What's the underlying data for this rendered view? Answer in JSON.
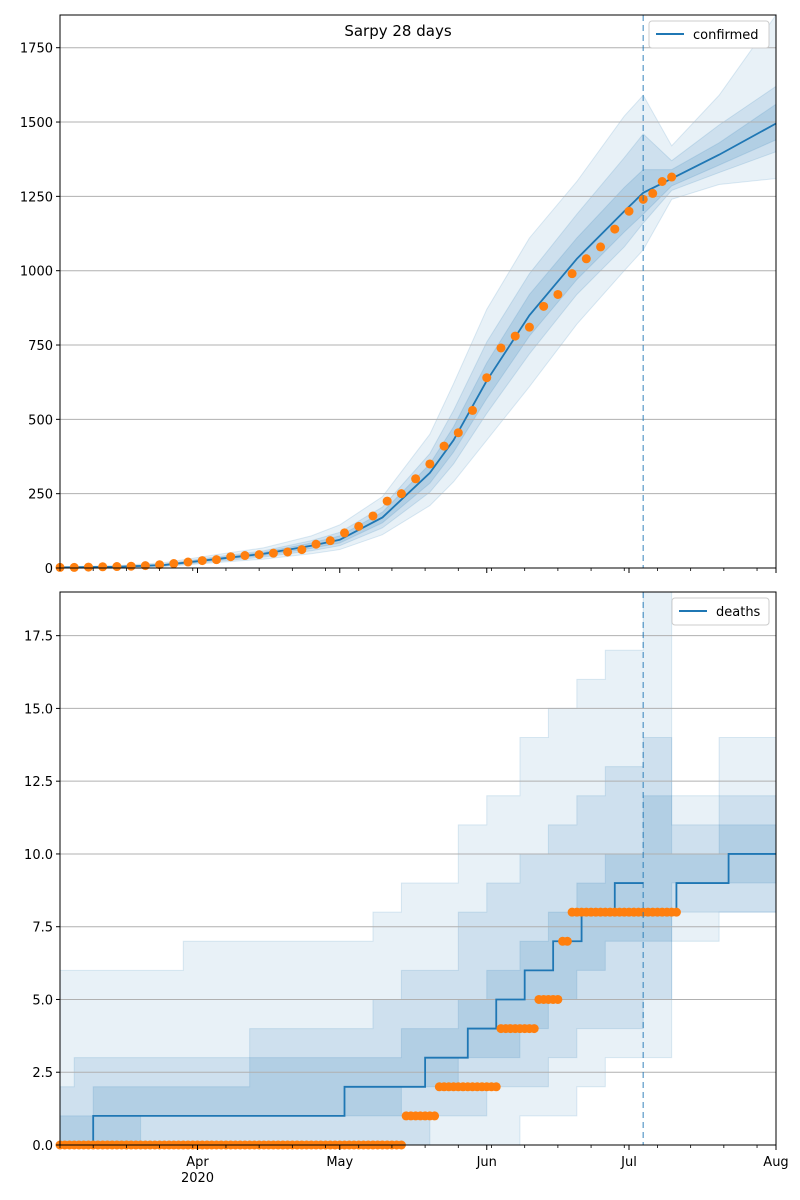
{
  "title": "Sarpy 28 days",
  "colors": {
    "model_line": "#1f77b4",
    "observed": "#ff7f0e",
    "band": "#1f77b4",
    "grid": "#b0b0b0",
    "vline": "#1f77b4"
  },
  "x_axis": {
    "domain_start": "2020-03-03",
    "domain_end": "2020-08-01",
    "forecast_start": "2020-07-04",
    "major_ticks": [
      {
        "date": "2020-04-01",
        "label": "Apr"
      },
      {
        "date": "2020-05-01",
        "label": "May"
      },
      {
        "date": "2020-06-01",
        "label": "Jun"
      },
      {
        "date": "2020-07-01",
        "label": "Jul"
      },
      {
        "date": "2020-08-01",
        "label": "Aug"
      }
    ],
    "year_label": "2020",
    "year_label_date": "2020-04-01"
  },
  "chart_data": [
    {
      "type": "line",
      "legend": "confirmed",
      "legend_position": "upper right",
      "grid": "horizontal",
      "ylim": [
        0,
        1860
      ],
      "yticks": [
        {
          "v": 0,
          "label": "0"
        },
        {
          "v": 250,
          "label": "250"
        },
        {
          "v": 500,
          "label": "500"
        },
        {
          "v": 750,
          "label": "750"
        },
        {
          "v": 1000,
          "label": "1000"
        },
        {
          "v": 1250,
          "label": "1250"
        },
        {
          "v": 1500,
          "label": "1500"
        },
        {
          "v": 1750,
          "label": "1750"
        }
      ],
      "model": {
        "x": [
          "2020-03-03",
          "2020-03-15",
          "2020-03-25",
          "2020-04-05",
          "2020-04-15",
          "2020-04-25",
          "2020-05-01",
          "2020-05-10",
          "2020-05-20",
          "2020-05-25",
          "2020-06-01",
          "2020-06-10",
          "2020-06-20",
          "2020-06-30",
          "2020-07-04",
          "2020-07-10",
          "2020-07-20",
          "2020-08-01"
        ],
        "y": [
          2,
          4,
          10,
          30,
          48,
          75,
          95,
          170,
          320,
          430,
          630,
          850,
          1040,
          1200,
          1262,
          1310,
          1390,
          1495
        ]
      },
      "bands": {
        "x": [
          "2020-03-03",
          "2020-03-15",
          "2020-03-25",
          "2020-04-05",
          "2020-04-15",
          "2020-04-25",
          "2020-05-01",
          "2020-05-10",
          "2020-05-20",
          "2020-05-25",
          "2020-06-01",
          "2020-06-10",
          "2020-06-20",
          "2020-06-30",
          "2020-07-04",
          "2020-07-10",
          "2020-07-20",
          "2020-08-01"
        ],
        "outer_hi": [
          4,
          8,
          18,
          45,
          68,
          108,
          145,
          240,
          450,
          620,
          870,
          1110,
          1300,
          1520,
          1590,
          1420,
          1590,
          1860
        ],
        "outer_lo": [
          1,
          2,
          5,
          18,
          30,
          48,
          62,
          112,
          210,
          290,
          430,
          610,
          820,
          1000,
          1070,
          1240,
          1290,
          1310
        ],
        "mid_hi": [
          3,
          6,
          14,
          38,
          58,
          92,
          120,
          205,
          385,
          530,
          760,
          990,
          1190,
          1380,
          1460,
          1370,
          1490,
          1620
        ],
        "mid_lo": [
          1,
          3,
          7,
          22,
          37,
          58,
          75,
          135,
          255,
          350,
          520,
          720,
          920,
          1080,
          1160,
          1270,
          1330,
          1400
        ],
        "inner_hi": [
          2,
          5,
          12,
          34,
          53,
          84,
          108,
          188,
          350,
          475,
          690,
          920,
          1110,
          1280,
          1340,
          1340,
          1430,
          1560
        ],
        "inner_lo": [
          1,
          3,
          8,
          26,
          42,
          66,
          84,
          152,
          285,
          390,
          570,
          780,
          970,
          1130,
          1190,
          1285,
          1355,
          1440
        ]
      },
      "observed": {
        "x": [
          "2020-03-03",
          "2020-03-06",
          "2020-03-09",
          "2020-03-12",
          "2020-03-15",
          "2020-03-18",
          "2020-03-21",
          "2020-03-24",
          "2020-03-27",
          "2020-03-30",
          "2020-04-02",
          "2020-04-05",
          "2020-04-08",
          "2020-04-11",
          "2020-04-14",
          "2020-04-17",
          "2020-04-20",
          "2020-04-23",
          "2020-04-26",
          "2020-04-29",
          "2020-05-02",
          "2020-05-05",
          "2020-05-08",
          "2020-05-11",
          "2020-05-14",
          "2020-05-17",
          "2020-05-20",
          "2020-05-23",
          "2020-05-26",
          "2020-05-29",
          "2020-06-01",
          "2020-06-04",
          "2020-06-07",
          "2020-06-10",
          "2020-06-13",
          "2020-06-16",
          "2020-06-19",
          "2020-06-22",
          "2020-06-25",
          "2020-06-28",
          "2020-07-01",
          "2020-07-04",
          "2020-07-06",
          "2020-07-08",
          "2020-07-10"
        ],
        "y": [
          2,
          2,
          3,
          4,
          5,
          6,
          8,
          11,
          15,
          20,
          25,
          28,
          38,
          42,
          45,
          50,
          54,
          62,
          80,
          92,
          118,
          140,
          175,
          225,
          250,
          300,
          350,
          410,
          455,
          530,
          640,
          740,
          780,
          810,
          880,
          920,
          990,
          1040,
          1080,
          1140,
          1200,
          1240,
          1260,
          1300,
          1315
        ]
      }
    },
    {
      "type": "line",
      "legend": "deaths",
      "legend_position": "upper right",
      "grid": "horizontal",
      "ylim": [
        0,
        19
      ],
      "yticks": [
        {
          "v": 0,
          "label": "0.0"
        },
        {
          "v": 2.5,
          "label": "2.5"
        },
        {
          "v": 5,
          "label": "5.0"
        },
        {
          "v": 7.5,
          "label": "7.5"
        },
        {
          "v": 10,
          "label": "10.0"
        },
        {
          "v": 12.5,
          "label": "12.5"
        },
        {
          "v": 15,
          "label": "15.0"
        },
        {
          "v": 17.5,
          "label": "17.5"
        }
      ],
      "model_steps": [
        {
          "x": "2020-03-03",
          "y": 0
        },
        {
          "x": "2020-03-10",
          "y": 1
        },
        {
          "x": "2020-05-02",
          "y": 2
        },
        {
          "x": "2020-05-19",
          "y": 3
        },
        {
          "x": "2020-05-28",
          "y": 4
        },
        {
          "x": "2020-06-03",
          "y": 5
        },
        {
          "x": "2020-06-09",
          "y": 6
        },
        {
          "x": "2020-06-15",
          "y": 7
        },
        {
          "x": "2020-06-21",
          "y": 8
        },
        {
          "x": "2020-06-28",
          "y": 9
        },
        {
          "x": "2020-07-04",
          "y": 9
        }
      ],
      "forecast_steps": [
        {
          "x": "2020-07-04",
          "y": 8
        },
        {
          "x": "2020-07-11",
          "y": 9
        },
        {
          "x": "2020-07-22",
          "y": 10
        },
        {
          "x": "2020-08-01",
          "y": 10
        }
      ],
      "bands_steps": {
        "x": [
          "2020-03-03",
          "2020-03-06",
          "2020-03-10",
          "2020-03-20",
          "2020-03-29",
          "2020-04-12",
          "2020-04-26",
          "2020-05-08",
          "2020-05-14",
          "2020-05-20",
          "2020-05-26",
          "2020-06-01",
          "2020-06-08",
          "2020-06-14",
          "2020-06-20",
          "2020-06-26",
          "2020-07-04",
          "2020-07-10",
          "2020-07-20",
          "2020-08-01"
        ],
        "outer_hi": [
          6,
          6,
          6,
          6,
          7,
          7,
          7,
          8,
          9,
          9,
          11,
          12,
          14,
          15,
          16,
          17,
          19,
          12,
          14,
          15
        ],
        "outer_lo": [
          0,
          0,
          0,
          0,
          0,
          0,
          0,
          0,
          0,
          0,
          0,
          0,
          1,
          1,
          2,
          3,
          3,
          7,
          8,
          8
        ],
        "mid_hi": [
          2,
          3,
          3,
          3,
          3,
          4,
          4,
          5,
          6,
          6,
          8,
          9,
          10,
          11,
          12,
          13,
          14,
          11,
          12,
          13
        ],
        "mid_lo": [
          0,
          0,
          0,
          0,
          0,
          0,
          0,
          0,
          0,
          1,
          1,
          2,
          2,
          3,
          4,
          4,
          5,
          8,
          8,
          8
        ],
        "inner_hi": [
          1,
          1,
          2,
          2,
          2,
          3,
          3,
          3,
          4,
          4,
          5,
          6,
          7,
          8,
          9,
          10,
          12,
          10,
          11,
          12
        ],
        "inner_lo": [
          0,
          0,
          0,
          1,
          1,
          1,
          1,
          1,
          2,
          2,
          3,
          3,
          4,
          5,
          6,
          7,
          7,
          9,
          9,
          9
        ]
      },
      "observed_runs": [
        {
          "from": "2020-03-03",
          "to": "2020-05-14",
          "y": 0
        },
        {
          "from": "2020-05-15",
          "to": "2020-05-21",
          "y": 1
        },
        {
          "from": "2020-05-22",
          "to": "2020-06-03",
          "y": 2
        },
        {
          "from": "2020-06-04",
          "to": "2020-06-11",
          "y": 4
        },
        {
          "from": "2020-06-12",
          "to": "2020-06-16",
          "y": 5
        },
        {
          "from": "2020-06-17",
          "to": "2020-06-18",
          "y": 7
        },
        {
          "from": "2020-06-19",
          "to": "2020-07-11",
          "y": 8
        }
      ]
    }
  ]
}
